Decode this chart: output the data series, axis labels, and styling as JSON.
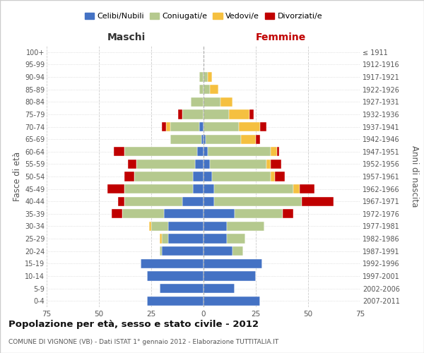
{
  "age_groups": [
    "0-4",
    "5-9",
    "10-14",
    "15-19",
    "20-24",
    "25-29",
    "30-34",
    "35-39",
    "40-44",
    "45-49",
    "50-54",
    "55-59",
    "60-64",
    "65-69",
    "70-74",
    "75-79",
    "80-84",
    "85-89",
    "90-94",
    "95-99",
    "100+"
  ],
  "birth_years": [
    "2007-2011",
    "2002-2006",
    "1997-2001",
    "1992-1996",
    "1987-1991",
    "1982-1986",
    "1977-1981",
    "1972-1976",
    "1967-1971",
    "1962-1966",
    "1957-1961",
    "1952-1956",
    "1947-1951",
    "1942-1946",
    "1937-1941",
    "1932-1936",
    "1927-1931",
    "1922-1926",
    "1917-1921",
    "1912-1916",
    "≤ 1911"
  ],
  "males": {
    "celibi": [
      27,
      21,
      27,
      30,
      20,
      17,
      17,
      19,
      10,
      5,
      5,
      4,
      3,
      1,
      2,
      0,
      0,
      0,
      0,
      0,
      0
    ],
    "coniugati": [
      0,
      0,
      0,
      0,
      1,
      3,
      8,
      20,
      28,
      33,
      28,
      28,
      35,
      15,
      14,
      10,
      6,
      2,
      2,
      0,
      0
    ],
    "vedovi": [
      0,
      0,
      0,
      0,
      0,
      1,
      1,
      0,
      0,
      0,
      0,
      0,
      0,
      0,
      2,
      0,
      0,
      0,
      0,
      0,
      0
    ],
    "divorziati": [
      0,
      0,
      0,
      0,
      0,
      0,
      0,
      5,
      3,
      8,
      5,
      4,
      5,
      0,
      2,
      2,
      0,
      0,
      0,
      0,
      0
    ]
  },
  "females": {
    "nubili": [
      27,
      15,
      25,
      28,
      14,
      11,
      11,
      15,
      5,
      5,
      4,
      3,
      2,
      1,
      0,
      0,
      0,
      0,
      0,
      0,
      0
    ],
    "coniugate": [
      0,
      0,
      0,
      0,
      5,
      9,
      18,
      23,
      42,
      38,
      28,
      27,
      30,
      17,
      17,
      12,
      8,
      3,
      2,
      0,
      0
    ],
    "vedove": [
      0,
      0,
      0,
      0,
      0,
      0,
      0,
      0,
      0,
      3,
      2,
      2,
      3,
      7,
      10,
      10,
      6,
      4,
      2,
      0,
      0
    ],
    "divorziate": [
      0,
      0,
      0,
      0,
      0,
      0,
      0,
      5,
      15,
      7,
      5,
      5,
      1,
      2,
      3,
      2,
      0,
      0,
      0,
      0,
      0
    ]
  },
  "colors": {
    "celibi": "#4472c4",
    "coniugati": "#b5c98e",
    "vedovi": "#f5c040",
    "divorziati": "#c00000"
  },
  "xlim": 75,
  "title": "Popolazione per età, sesso e stato civile - 2012",
  "subtitle": "COMUNE DI VIGNONE (VB) - Dati ISTAT 1° gennaio 2012 - Elaborazione TUTTITALIA.IT",
  "xlabel_left": "Maschi",
  "xlabel_right": "Femmine",
  "ylabel": "Fasce di età",
  "ylabel_right": "Anni di nascita",
  "legend_labels": [
    "Celibi/Nubili",
    "Coniugati/e",
    "Vedovi/e",
    "Divorziati/e"
  ],
  "bg_color": "#ffffff",
  "grid_color": "#cccccc",
  "bar_height": 0.75
}
